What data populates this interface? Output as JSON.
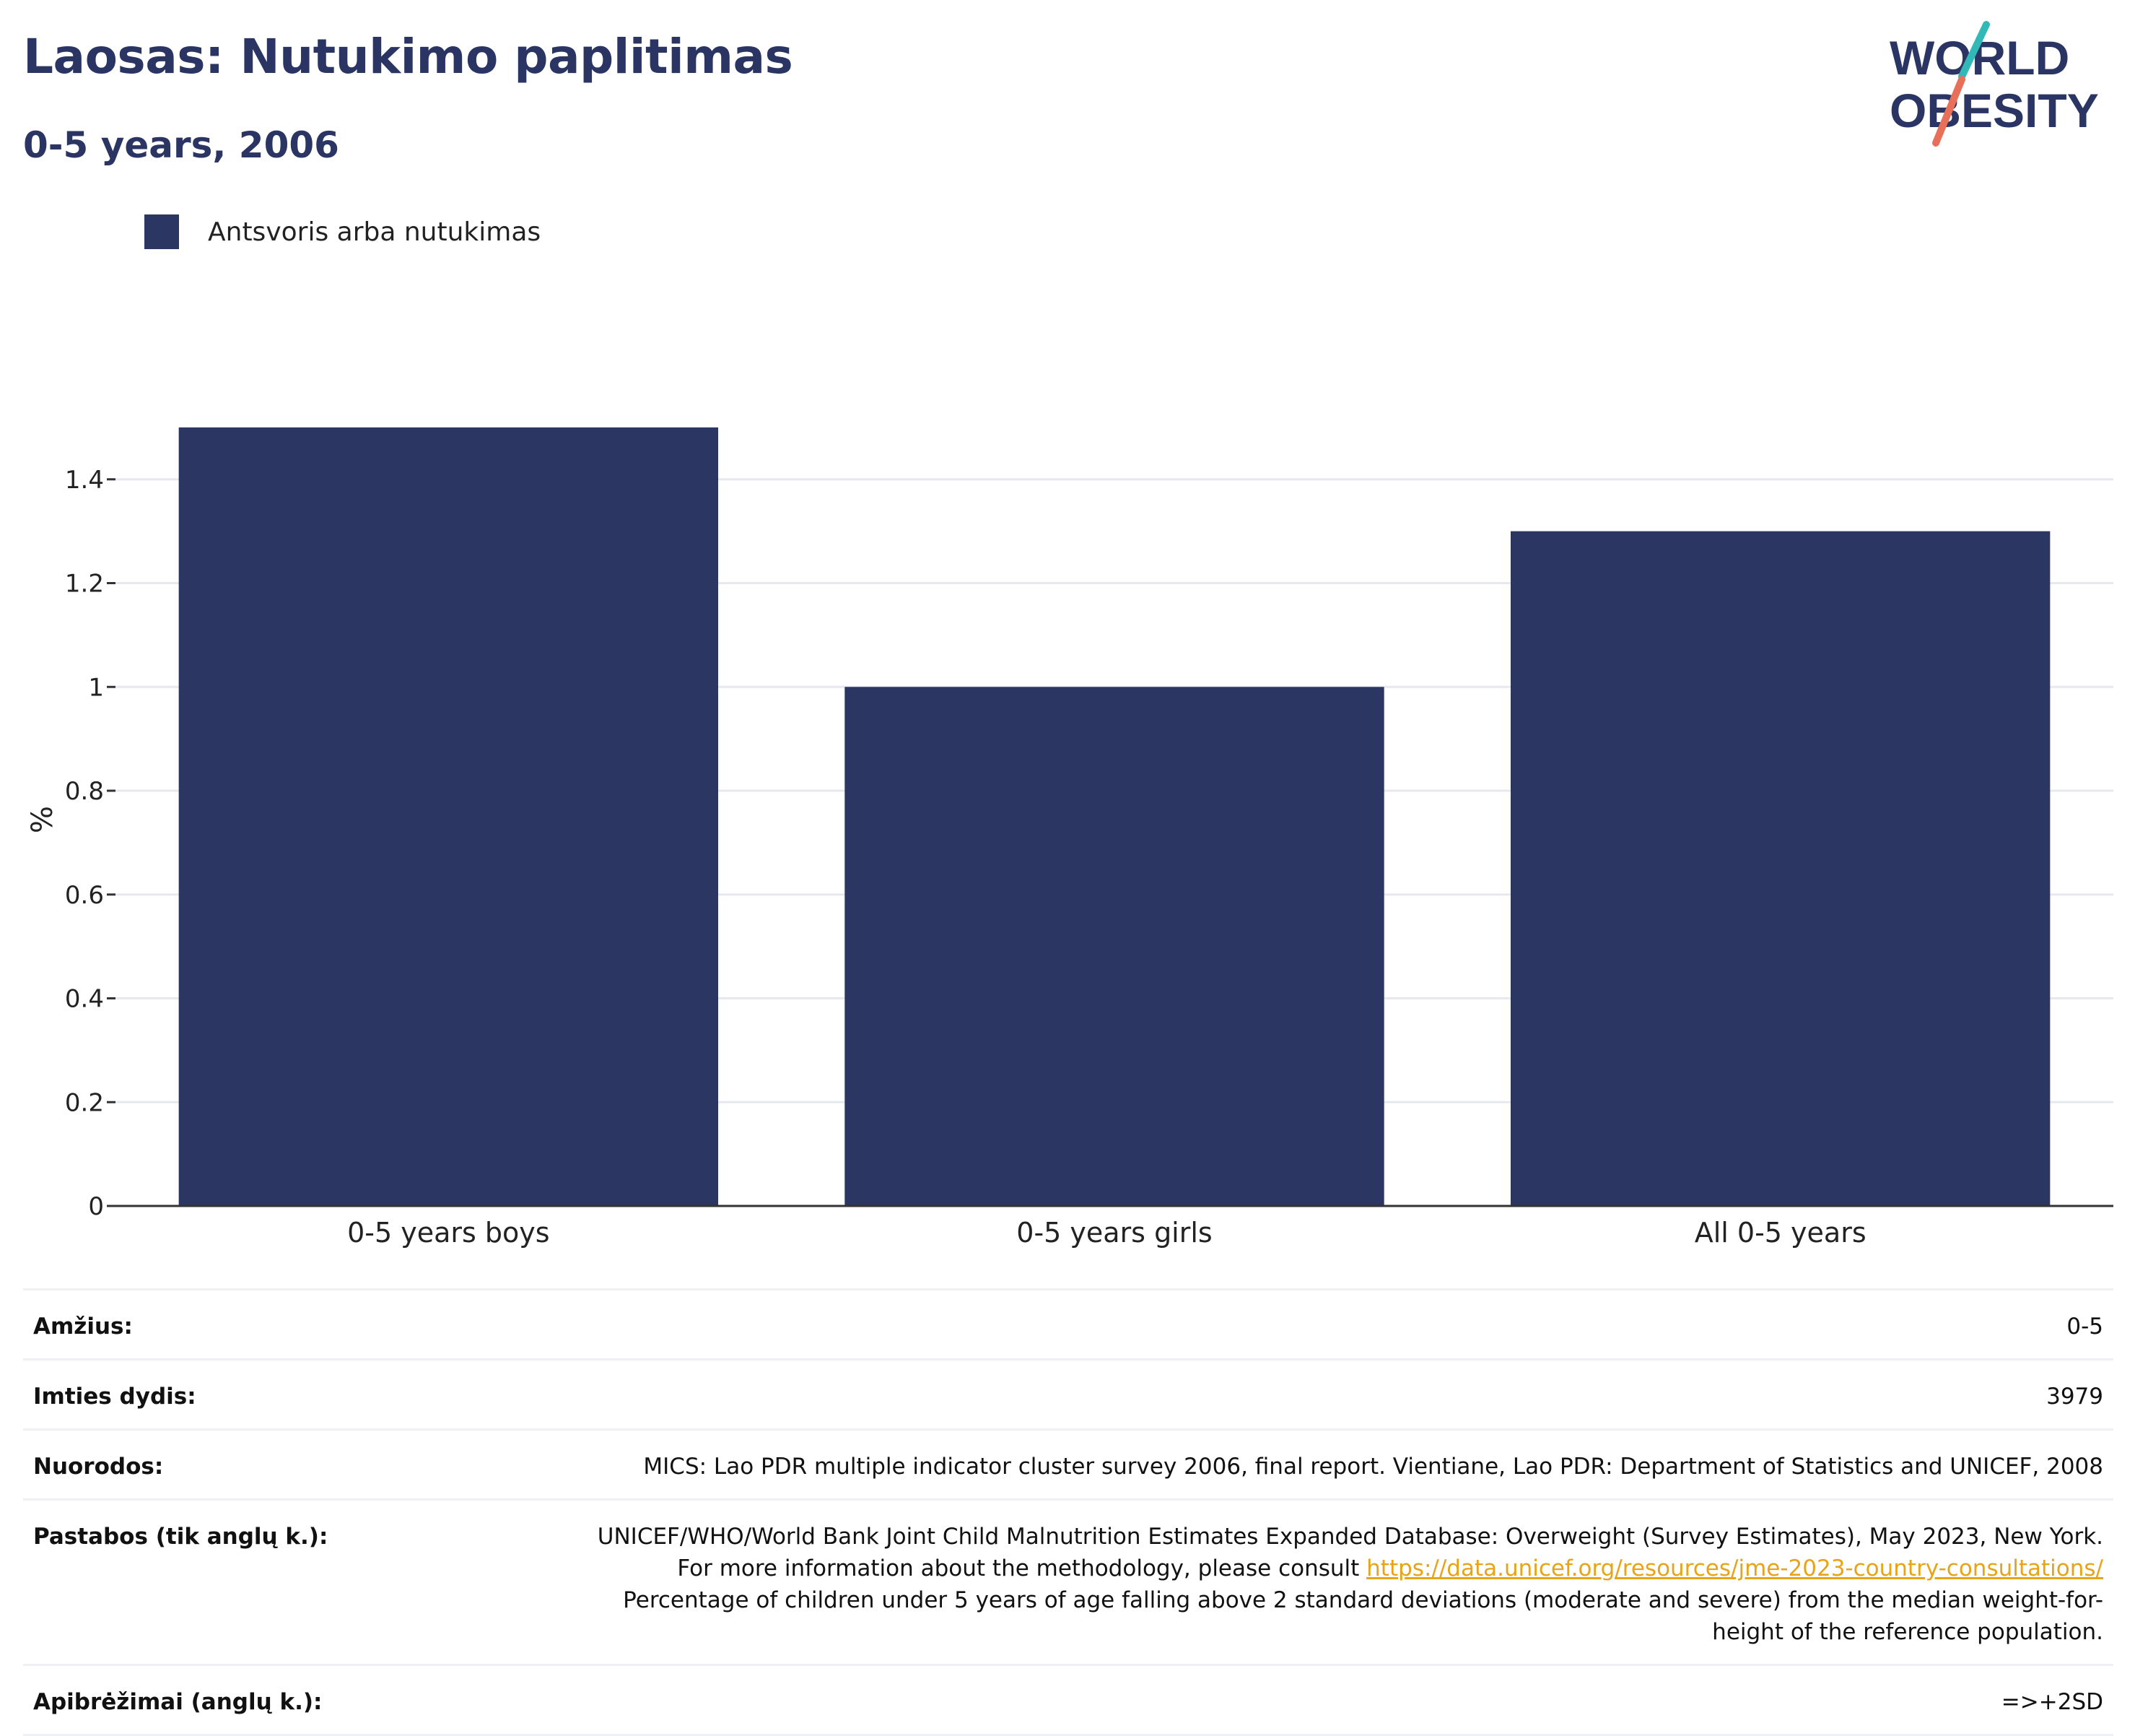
{
  "header": {
    "title": "Laosas: Nutukimo paplitimas",
    "subtitle": "0-5 years, 2006"
  },
  "logo": {
    "line1": "WORLD",
    "line2": "OBESITY"
  },
  "legend": {
    "label": "Antsvoris arba nutukimas",
    "color": "#2b3762"
  },
  "chart_data": {
    "type": "bar",
    "categories": [
      "0-5 years boys",
      "0-5 years girls",
      "All 0-5 years"
    ],
    "series": [
      {
        "name": "Antsvoris arba nutukimas",
        "values": [
          1.5,
          1.0,
          1.3
        ]
      }
    ],
    "ylabel": "%",
    "ylim": [
      0,
      1.6
    ],
    "yticks": [
      0,
      0.2,
      0.4,
      0.6,
      0.8,
      1,
      1.2,
      1.4
    ],
    "ytick_labels": [
      "0",
      "0.2",
      "0.4",
      "0.6",
      "0.8",
      "1",
      "1.2",
      "1.4"
    ],
    "grid": true,
    "legend_position": "top-left"
  },
  "info": {
    "age": {
      "label": "Amžius:",
      "value": "0-5"
    },
    "sample": {
      "label": "Imties dydis:",
      "value": "3979"
    },
    "refs": {
      "label": "Nuorodos:",
      "value": "MICS: Lao PDR multiple indicator cluster survey 2006, final report. Vientiane, Lao PDR: Department of Statistics and UNICEF, 2008"
    },
    "notes": {
      "label": "Pastabos (tik anglų k.):",
      "text1": "UNICEF/WHO/World Bank Joint Child Malnutrition Estimates Expanded Database: Overweight (Survey Estimates), May 2023, New York. For more information about the methodology, please consult ",
      "link": "https://data.unicef.org/resources/jme-2023-country-consultations/",
      "text2": "Percentage of children under 5 years of age falling above 2 standard deviations (moderate and severe) from the median weight-for-height of the reference population."
    },
    "definitions": {
      "label": "Apibrėžimai (anglų k.):",
      "value": "=>+2SD"
    }
  },
  "colors": {
    "bar": "#2b3762",
    "grid": "#e6e8ee",
    "accent_teal": "#33b8b8",
    "accent_coral": "#e8705a"
  }
}
